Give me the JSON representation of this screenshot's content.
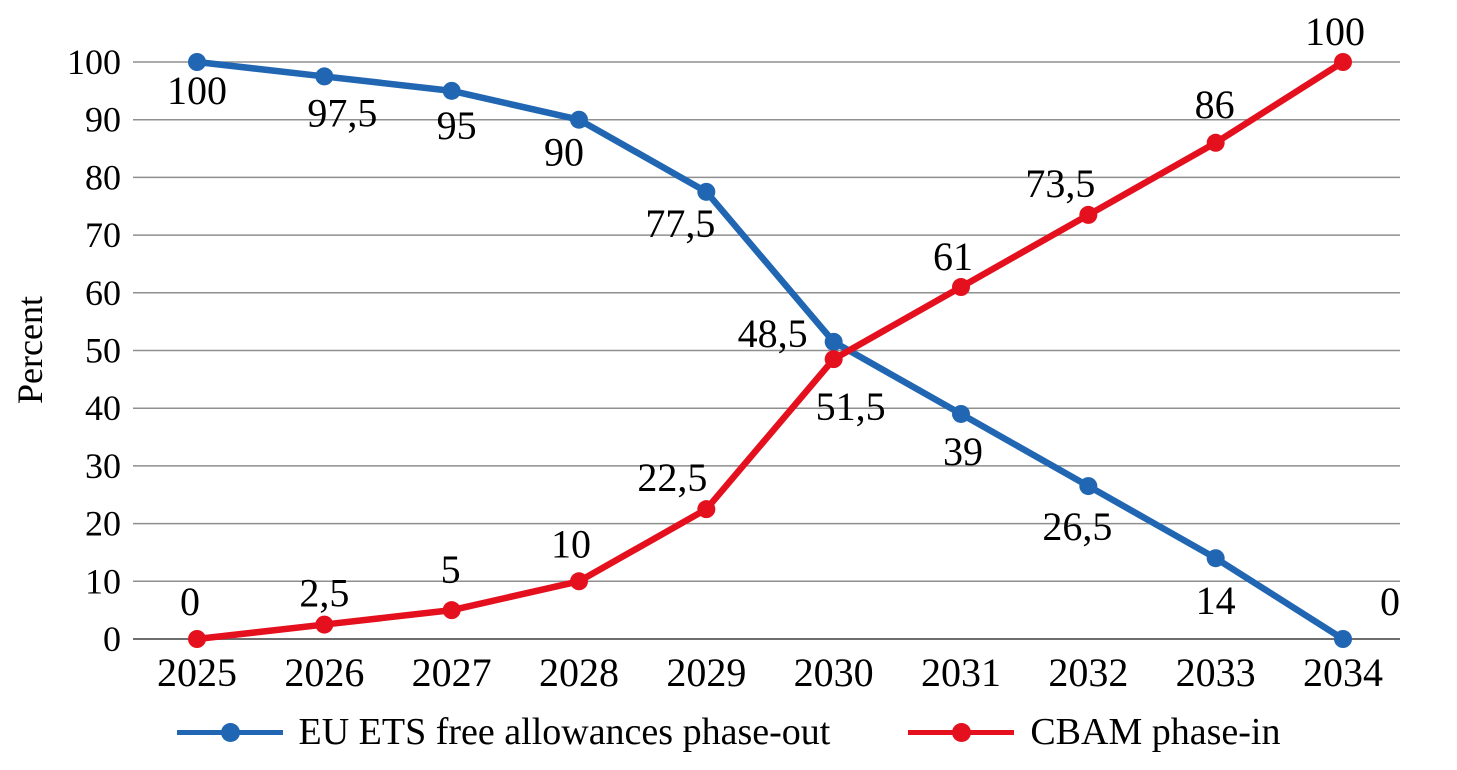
{
  "chart_data": {
    "type": "line",
    "title": "",
    "xlabel": "",
    "ylabel": "Percent",
    "categories": [
      "2025",
      "2026",
      "2027",
      "2028",
      "2029",
      "2030",
      "2031",
      "2032",
      "2033",
      "2034"
    ],
    "y_ticks": [
      0,
      10,
      20,
      30,
      40,
      50,
      60,
      70,
      80,
      90,
      100
    ],
    "ylim": [
      0,
      100
    ],
    "grid": "horizontal",
    "legend_position": "bottom",
    "decimal_separator": ",",
    "series": [
      {
        "name": "EU ETS free allowances phase-out",
        "color": "#2066B2",
        "values": [
          100,
          97.5,
          95,
          90,
          77.5,
          51.5,
          39,
          26.5,
          14,
          0
        ],
        "labels": [
          "100",
          "97,5",
          "95",
          "90",
          "77,5",
          "51,5",
          "39",
          "26,5",
          "14",
          "0"
        ],
        "label_position": "below"
      },
      {
        "name": "CBAM phase-in",
        "color": "#E4101E",
        "values": [
          0,
          2.5,
          5,
          10,
          22.5,
          48.5,
          61,
          73.5,
          86,
          100
        ],
        "labels": [
          "0",
          "2,5",
          "5",
          "10",
          "22,5",
          "48,5",
          "61",
          "73,5",
          "86",
          "100"
        ],
        "label_position": "above"
      }
    ]
  },
  "colors": {
    "background": "#FFFFFF",
    "gridline": "#8F8F8F",
    "axis": "#6E6E6E",
    "text": "#000000"
  }
}
